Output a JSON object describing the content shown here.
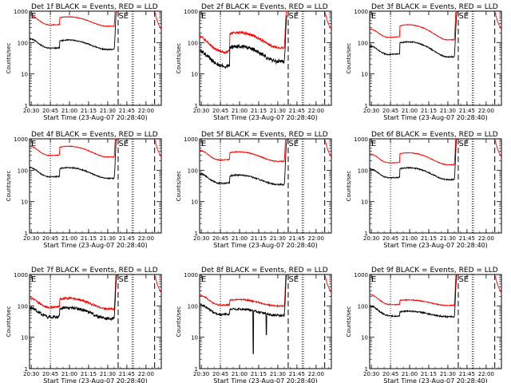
{
  "figure": {
    "panels": [
      {
        "title": "Det 1f BLACK = Events, RED = LLD",
        "det": 1,
        "black_base": 60,
        "black_amp": 2.0,
        "red_ratio": 5.5,
        "noise": 0.04,
        "dip_early": 1.0,
        "spikes": []
      },
      {
        "title": "Det 2f BLACK = Events, RED = LLD",
        "det": 2,
        "black_base": 25,
        "black_amp": 3.0,
        "red_ratio": 2.8,
        "noise": 0.15,
        "dip_early": 0.55,
        "spikes": []
      },
      {
        "title": "Det 3f BLACK = Events, RED = LLD",
        "det": 3,
        "black_base": 35,
        "black_amp": 3.0,
        "red_ratio": 3.5,
        "noise": 0.04,
        "dip_early": 1.0,
        "spikes": []
      },
      {
        "title": "Det 4f BLACK = Events, RED = LLD",
        "det": 4,
        "black_base": 55,
        "black_amp": 2.2,
        "red_ratio": 4.8,
        "noise": 0.04,
        "dip_early": 1.0,
        "spikes": []
      },
      {
        "title": "Det 5f BLACK = Events, RED = LLD",
        "det": 5,
        "black_base": 35,
        "black_amp": 2.0,
        "red_ratio": 5.5,
        "noise": 0.05,
        "dip_early": 1.0,
        "spikes": []
      },
      {
        "title": "Det 6f BLACK = Events, RED = LLD",
        "det": 6,
        "black_base": 50,
        "black_amp": 2.4,
        "red_ratio": 3.0,
        "noise": 0.04,
        "dip_early": 1.0,
        "spikes": []
      },
      {
        "title": "Det 7f BLACK = Events, RED = LLD",
        "det": 7,
        "black_base": 40,
        "black_amp": 2.2,
        "red_ratio": 2.0,
        "noise": 0.12,
        "dip_early": 1.0,
        "spikes": []
      },
      {
        "title": "Det 8f BLACK = Events, RED = LLD",
        "det": 8,
        "black_base": 50,
        "black_amp": 1.6,
        "red_ratio": 2.0,
        "noise": 0.08,
        "dip_early": 1.0,
        "spikes": [
          {
            "t": 21.18,
            "v": 3
          },
          {
            "t": 21.35,
            "v": 12
          }
        ]
      },
      {
        "title": "Det 9f BLACK = Events, RED = LLD",
        "det": 9,
        "black_base": 45,
        "black_amp": 1.5,
        "red_ratio": 2.3,
        "noise": 0.05,
        "dip_early": 1.0,
        "spikes": []
      }
    ]
  },
  "chart_data": {
    "type": "line",
    "ylabel": "Counts/sec",
    "xlabel": "Start Time (23-Aug-07 20:28:40)",
    "x_start_time": "20:28:40",
    "x_range_hours": [
      20.4778,
      22.2
    ],
    "ylim": [
      1,
      1000
    ],
    "yscale": "log",
    "y_ticks": [
      1,
      10,
      100,
      1000
    ],
    "y_tick_labels": [
      "1",
      "10",
      "100",
      "1000"
    ],
    "x_ticks": [
      20.5,
      20.75,
      21.0,
      21.25,
      21.5,
      21.75,
      22.0
    ],
    "x_tick_labels": [
      "20:30",
      "20:45",
      "21:00",
      "21:15",
      "21:30",
      "21:45",
      "22:00"
    ],
    "series": [
      {
        "color": "#000000"
      },
      {
        "color": "#ff0000"
      }
    ],
    "markers": {
      "dotted_lines_hours": [
        20.75,
        21.818,
        21.835
      ],
      "dashed_lines_hours": [
        21.636,
        22.113
      ],
      "saa_exit_hour": 21.6,
      "e_label": "E",
      "se_label": "SE"
    }
  }
}
